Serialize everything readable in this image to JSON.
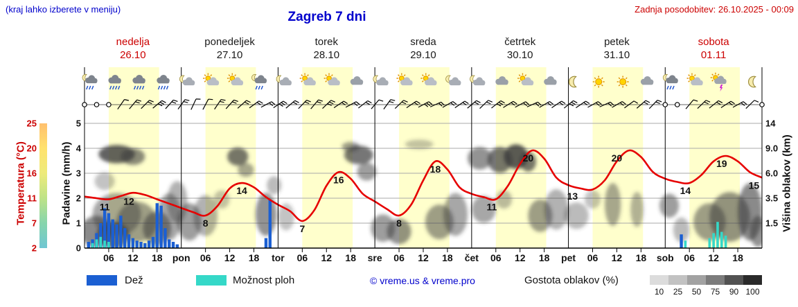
{
  "header": {
    "note": "(kraj lahko izberete v meniju)",
    "title": "Zagreb 7 dni",
    "updated": "Zadnja posodobitev: 26.10.2025 - 00:09"
  },
  "days": [
    {
      "name": "nedelja",
      "date": "26.10",
      "weekend": true
    },
    {
      "name": "ponedeljek",
      "date": "27.10",
      "weekend": false
    },
    {
      "name": "torek",
      "date": "28.10",
      "weekend": false
    },
    {
      "name": "sreda",
      "date": "29.10",
      "weekend": false
    },
    {
      "name": "četrtek",
      "date": "30.10",
      "weekend": false
    },
    {
      "name": "petek",
      "date": "31.10",
      "weekend": false
    },
    {
      "name": "sobota",
      "date": "01.11",
      "weekend": true
    }
  ],
  "axes": {
    "temp_title": "Temperatura (°C)",
    "temp_ticks": [
      "25",
      "20",
      "16",
      "11",
      "7",
      "2"
    ],
    "precip_title": "Padavine (mm/h)",
    "precip_ticks": [
      "5",
      "4",
      "3",
      "2",
      "1",
      "0"
    ],
    "cloud_title": "Višina oblakov (km)",
    "cloud_ticks": [
      "14",
      "9.0",
      "6.0",
      "3.5",
      "1.5"
    ],
    "hour_labels": [
      "06",
      "12",
      "18"
    ],
    "day_abbrs": [
      "pon",
      "tor",
      "sre",
      "čet",
      "pet",
      "sob"
    ]
  },
  "legend": {
    "rain_label": "Dež",
    "showers_label": "Možnost ploh",
    "copyright": "© vreme.us & vreme.pro",
    "clouds_label": "Gostota oblakov (%)",
    "scale_labels": [
      "10",
      "25",
      "50",
      "75",
      "90",
      "100"
    ],
    "scale_colors": [
      "#dcdcdc",
      "#c2c2c2",
      "#a2a2a2",
      "#7c7c7c",
      "#525252",
      "#2a2a2a"
    ]
  },
  "colors": {
    "accent_blue": "#0000cc",
    "red": "#cc0000",
    "temp_line": "#e60000",
    "rain": "#1b5fd2",
    "showers": "#35d8c8",
    "day_band": "#ffffcc",
    "cloud_fill": "#3c3c3c",
    "temp_scale_strip": [
      "#ffab3d",
      "#ffd83d",
      "#e8e44e",
      "#a8d95f",
      "#5fc791",
      "#3fb3c4"
    ]
  },
  "chart_data": {
    "type": "line",
    "x_unit": "hours from 26.10 00:00",
    "x_range": [
      0,
      168
    ],
    "day_band_hours": [
      6,
      18.5
    ],
    "temperature_c": {
      "step_h": 3,
      "values": [
        11.5,
        11.2,
        11.0,
        11.6,
        12.2,
        11.8,
        11.0,
        10.2,
        9.4,
        8.6,
        8.0,
        9.8,
        13.0,
        14.0,
        13.2,
        11.4,
        10.0,
        8.8,
        7.0,
        9.0,
        13.5,
        16.0,
        14.8,
        12.0,
        10.6,
        9.2,
        8.0,
        10.0,
        14.5,
        18.0,
        16.5,
        13.2,
        12.0,
        11.4,
        11.0,
        13.5,
        17.5,
        20.0,
        18.5,
        15.0,
        13.6,
        13.0,
        12.8,
        14.5,
        18.0,
        20.0,
        18.8,
        16.0,
        14.8,
        14.2,
        14.0,
        15.5,
        18.0,
        19.0,
        18.0,
        16.0,
        15.0
      ]
    },
    "temp_point_labels": [
      [
        5,
        11
      ],
      [
        11,
        12
      ],
      [
        30,
        8
      ],
      [
        39,
        14
      ],
      [
        54,
        7
      ],
      [
        63,
        16
      ],
      [
        78,
        8
      ],
      [
        87,
        18
      ],
      [
        101,
        11
      ],
      [
        110,
        20
      ],
      [
        121,
        13
      ],
      [
        132,
        20
      ],
      [
        149,
        14
      ],
      [
        158,
        19
      ],
      [
        166,
        15
      ]
    ],
    "temp_axis_c": [
      2,
      25
    ],
    "precip_axis_mm": [
      0,
      5
    ],
    "cloud_axis_km": [
      0,
      1.5,
      3.5,
      6.0,
      9.0,
      14
    ],
    "rain_bars": [
      [
        1,
        0.25
      ],
      [
        2,
        0.35
      ],
      [
        3,
        0.6
      ],
      [
        4,
        1.0
      ],
      [
        5,
        1.6
      ],
      [
        6,
        1.4
      ],
      [
        7,
        1.15
      ],
      [
        8,
        0.95
      ],
      [
        9,
        1.3
      ],
      [
        10,
        0.8
      ],
      [
        11,
        0.55
      ],
      [
        12,
        0.4
      ],
      [
        13,
        0.3
      ],
      [
        14,
        0.25
      ],
      [
        15,
        0.2
      ],
      [
        16,
        0.3
      ],
      [
        17,
        0.45
      ],
      [
        18,
        1.8
      ],
      [
        19,
        1.7
      ],
      [
        20,
        0.8
      ],
      [
        21,
        0.35
      ],
      [
        22,
        0.25
      ],
      [
        23,
        0.15
      ],
      [
        45,
        0.4
      ],
      [
        46,
        1.95
      ],
      [
        148,
        0.55
      ]
    ],
    "shower_bars": [
      [
        2,
        0.2
      ],
      [
        3,
        0.35
      ],
      [
        4,
        0.45
      ],
      [
        5,
        0.3
      ],
      [
        6,
        0.25
      ],
      [
        149,
        0.3
      ],
      [
        155,
        0.4
      ],
      [
        156,
        0.6
      ],
      [
        157,
        1.05
      ],
      [
        158,
        0.65
      ],
      [
        159,
        0.5
      ]
    ],
    "cloud_blobs": [
      [
        3,
        1.0,
        4,
        1.0,
        0.6
      ],
      [
        7,
        0.8,
        4,
        0.8,
        0.7
      ],
      [
        8,
        2.2,
        6,
        1.6,
        0.45
      ],
      [
        13,
        1.6,
        5,
        1.4,
        0.5
      ],
      [
        18,
        1.2,
        3.5,
        1.1,
        0.55
      ],
      [
        21,
        2.0,
        3,
        1.7,
        0.45
      ],
      [
        23,
        3.2,
        2.5,
        1.8,
        0.4
      ],
      [
        8,
        8.3,
        4.5,
        1.2,
        0.8
      ],
      [
        12,
        8.0,
        3,
        1.0,
        0.6
      ],
      [
        5,
        5.2,
        2.5,
        0.9,
        0.3
      ],
      [
        26,
        1.6,
        3,
        1.3,
        0.5
      ],
      [
        30,
        2.1,
        3,
        1.5,
        0.4
      ],
      [
        34,
        3.4,
        2,
        0.8,
        0.3
      ],
      [
        38,
        8.0,
        2.6,
        1.1,
        0.7
      ],
      [
        40,
        6.4,
        2,
        0.8,
        0.45
      ],
      [
        45,
        2.2,
        2.6,
        1.6,
        0.55
      ],
      [
        47,
        4.8,
        1.8,
        0.9,
        0.35
      ],
      [
        50,
        2.0,
        2,
        1.0,
        0.3
      ],
      [
        66,
        9.3,
        2.2,
        0.8,
        0.5
      ],
      [
        68,
        8.2,
        3.6,
        1.2,
        0.7
      ],
      [
        70,
        6.2,
        2.4,
        1.0,
        0.5
      ],
      [
        74,
        1.2,
        3,
        0.9,
        0.5
      ],
      [
        78,
        1.0,
        3,
        0.8,
        0.55
      ],
      [
        83,
        9.8,
        3.5,
        0.9,
        0.3
      ],
      [
        88,
        1.6,
        3.5,
        1.2,
        0.5
      ],
      [
        92,
        2.2,
        3,
        1.6,
        0.45
      ],
      [
        98,
        7.8,
        3,
        1.4,
        0.55
      ],
      [
        103,
        7.6,
        3,
        1.6,
        0.7
      ],
      [
        107,
        8.0,
        3,
        1.6,
        0.85
      ],
      [
        110,
        7.4,
        2,
        1.2,
        0.7
      ],
      [
        99,
        2.6,
        3,
        1.1,
        0.45
      ],
      [
        104,
        3.4,
        2,
        0.8,
        0.35
      ],
      [
        113,
        2.1,
        3,
        1.2,
        0.5
      ],
      [
        117,
        2.6,
        3,
        1.6,
        0.4
      ],
      [
        122,
        2.1,
        3,
        1.0,
        0.35
      ],
      [
        126,
        3.4,
        2,
        0.8,
        0.3
      ],
      [
        131,
        3.0,
        2,
        1.8,
        0.45
      ],
      [
        137,
        2.6,
        1.6,
        1.4,
        0.4
      ],
      [
        145,
        2.9,
        2.4,
        1.0,
        0.5
      ],
      [
        148,
        1.1,
        2,
        0.8,
        0.35
      ],
      [
        155,
        1.6,
        4,
        1.3,
        0.5
      ],
      [
        160,
        2.0,
        5,
        1.8,
        0.55
      ],
      [
        165,
        2.4,
        3,
        2.2,
        0.6
      ],
      [
        167,
        1.0,
        2,
        1.0,
        0.55
      ]
    ],
    "wind_barbs": [
      [],
      [],
      [],
      [
        35,
        1
      ],
      [
        40,
        2
      ],
      [
        45,
        2
      ],
      [
        50,
        3
      ],
      [
        42,
        2
      ],
      [
        36,
        2
      ],
      [
        25,
        1
      ],
      [
        28,
        1
      ],
      [
        34,
        2
      ],
      [
        42,
        2
      ],
      [
        48,
        2
      ],
      [
        54,
        2
      ],
      [
        62,
        2
      ],
      [
        56,
        3
      ],
      [
        50,
        2
      ],
      [
        44,
        2
      ],
      [
        40,
        2
      ],
      [
        46,
        3
      ],
      [
        56,
        2
      ],
      [
        62,
        2
      ],
      [
        52,
        2
      ],
      [
        40,
        1
      ],
      [
        36,
        2
      ],
      [
        46,
        2
      ],
      [
        56,
        2
      ],
      [
        62,
        3
      ],
      [
        66,
        2
      ],
      [
        60,
        2
      ],
      [
        56,
        2
      ],
      [
        50,
        2
      ],
      [
        46,
        2
      ],
      [
        52,
        3
      ],
      [
        58,
        2
      ],
      [
        62,
        2
      ],
      [
        66,
        2
      ],
      [
        60,
        2
      ],
      [
        56,
        2
      ],
      [
        51,
        3
      ],
      [
        56,
        2
      ],
      [
        61,
        2
      ],
      [
        66,
        2
      ],
      [
        60,
        2
      ],
      [
        54,
        1
      ],
      [
        49,
        2
      ],
      [
        44,
        2
      ],
      [],
      [],
      [
        40,
        1
      ],
      [
        46,
        2
      ],
      [
        51,
        2
      ],
      [
        57,
        2
      ],
      [
        61,
        2
      ],
      [
        46,
        1
      ],
      []
    ],
    "weather_icons": [
      [
        1.5,
        "moon-rain"
      ],
      [
        7.5,
        "rain"
      ],
      [
        13.5,
        "rain"
      ],
      [
        19.5,
        "rain"
      ],
      [
        25.5,
        "moon-cloud"
      ],
      [
        31.5,
        "sun-cloud"
      ],
      [
        37.5,
        "sun-cloud"
      ],
      [
        43.5,
        "moon-rain"
      ],
      [
        49.5,
        "moon-cloud"
      ],
      [
        55.5,
        "sun-cloud"
      ],
      [
        61.5,
        "sun-cloud"
      ],
      [
        67.5,
        "cloud"
      ],
      [
        73.5,
        "moon-cloud"
      ],
      [
        79.5,
        "sun-cloud"
      ],
      [
        85.5,
        "sun-cloud"
      ],
      [
        91.5,
        "moon-cloud"
      ],
      [
        97.5,
        "moon-cloud"
      ],
      [
        103.5,
        "cloud"
      ],
      [
        109.5,
        "sun-cloud"
      ],
      [
        115.5,
        "cloud"
      ],
      [
        121.5,
        "moon"
      ],
      [
        127.5,
        "sun"
      ],
      [
        133.5,
        "sun"
      ],
      [
        139.5,
        "cloud"
      ],
      [
        145.5,
        "moon-rain"
      ],
      [
        151.5,
        "sun-cloud"
      ],
      [
        157.5,
        "sun-storm"
      ],
      [
        166,
        "moon"
      ]
    ]
  }
}
